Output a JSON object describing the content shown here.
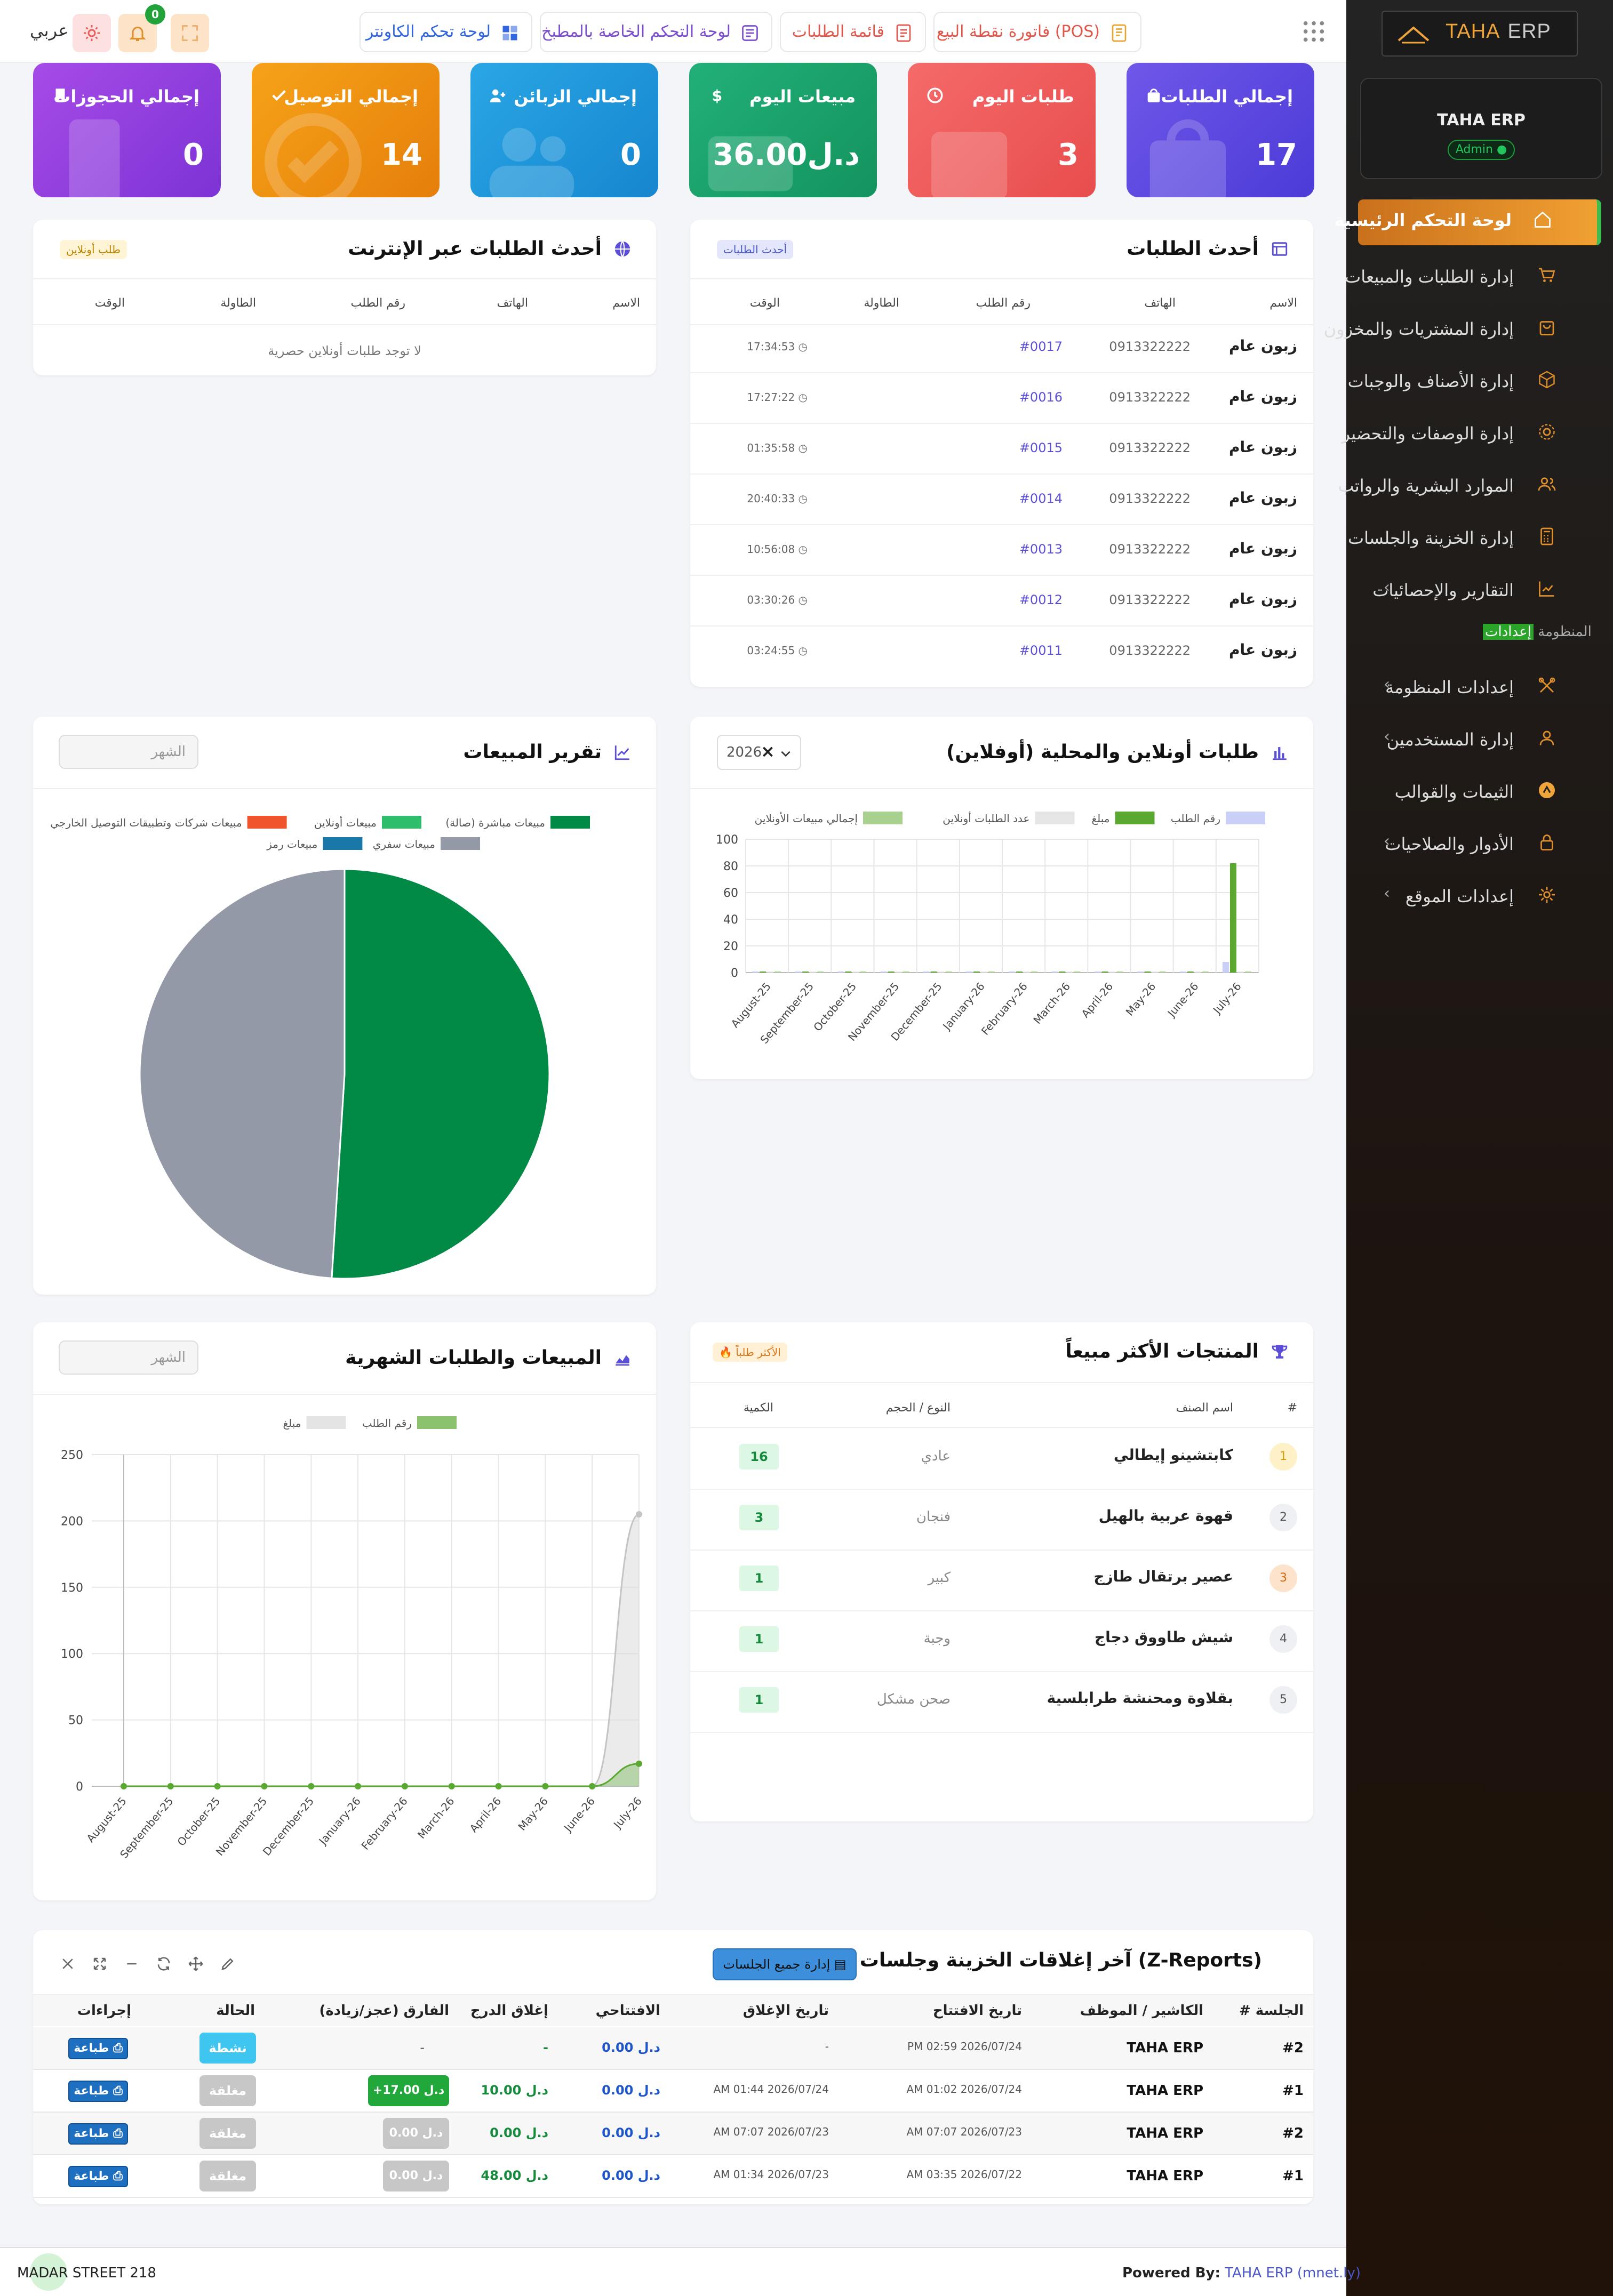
{
  "sidebar": {
    "logo_main": "TAHA",
    "logo_suffix": "ERP",
    "user_name": "TAHA ERP",
    "user_role": "Admin",
    "items": [
      {
        "label": "لوحة التحكم الرئيسية",
        "icon": "home-icon",
        "active": true
      },
      {
        "label": "إدارة الطلبات والمبيعات",
        "icon": "cart-icon"
      },
      {
        "label": "إدارة المشتريات والمخزون",
        "icon": "bag-icon"
      },
      {
        "label": "إدارة الأصناف والوجبات",
        "icon": "box-icon"
      },
      {
        "label": "إدارة الوصفات والتحضير",
        "icon": "gear-icon"
      },
      {
        "label": "الموارد البشرية والرواتب",
        "icon": "people-icon"
      },
      {
        "label": "إدارة الخزينة والجلسات",
        "icon": "calculator-icon"
      },
      {
        "label": "التقارير والإحصائيات",
        "icon": "chart-icon"
      }
    ],
    "section_highlight": "إعدادات",
    "section_rest": "المنظومة",
    "settings_items": [
      {
        "label": "إعدادات المنظومة",
        "icon": "tools-icon"
      },
      {
        "label": "إدارة المستخدمين",
        "icon": "user-icon"
      },
      {
        "label": "الثيمات والقوالب",
        "icon": "palette-icon"
      },
      {
        "label": "الأدوار والصلاحيات",
        "icon": "lock-icon"
      },
      {
        "label": "إعدادات الموقع",
        "icon": "settings-icon"
      }
    ]
  },
  "topbar": {
    "pos": "فاتورة نقطة البيع (POS)",
    "orders": "قائمة الطلبات",
    "kitchen": "لوحة التحكم الخاصة بالمطبخ",
    "counter": "لوحة تحكم الكاونتر",
    "notifications_count": "0",
    "language": "عربي"
  },
  "stats": [
    {
      "title": "إجمالي الطلبات",
      "value": "17",
      "color": "#5a48e0"
    },
    {
      "title": "طلبات اليوم",
      "value": "3",
      "color": "#ef5b5b"
    },
    {
      "title": "مبيعات اليوم",
      "value": "36.00د.ل",
      "color": "#1aa36b"
    },
    {
      "title": "إجمالي الزبائن",
      "value": "0",
      "color": "#1f97da"
    },
    {
      "title": "إجمالي التوصيل",
      "value": "14",
      "color": "#f09315"
    },
    {
      "title": "إجمالي الحجوزات",
      "value": "0",
      "color": "#9140de"
    }
  ],
  "recent_orders": {
    "title": "أحدث الطلبات",
    "chip": "أحدث الطلبات",
    "columns": [
      "الاسم",
      "الهاتف",
      "رقم الطلب",
      "الطاولة",
      "الوقت"
    ],
    "rows": [
      {
        "name": "زبون عام",
        "phone": "0913322222",
        "order": "#0017",
        "table": "",
        "time": "17:34:53"
      },
      {
        "name": "زبون عام",
        "phone": "0913322222",
        "order": "#0016",
        "table": "",
        "time": "17:27:22"
      },
      {
        "name": "زبون عام",
        "phone": "0913322222",
        "order": "#0015",
        "table": "",
        "time": "01:35:58"
      },
      {
        "name": "زبون عام",
        "phone": "0913322222",
        "order": "#0014",
        "table": "",
        "time": "20:40:33"
      },
      {
        "name": "زبون عام",
        "phone": "0913322222",
        "order": "#0013",
        "table": "",
        "time": "10:56:08"
      },
      {
        "name": "زبون عام",
        "phone": "0913322222",
        "order": "#0012",
        "table": "",
        "time": "03:30:26"
      },
      {
        "name": "زبون عام",
        "phone": "0913322222",
        "order": "#0011",
        "table": "",
        "time": "03:24:55"
      }
    ]
  },
  "online_orders": {
    "title": "أحدث الطلبات عبر الإنترنت",
    "chip": "طلب أونلاين",
    "columns": [
      "الاسم",
      "الهاتف",
      "رقم الطلب",
      "الطاولة",
      "الوقت"
    ],
    "empty": "لا توجد طلبات أونلاين حصرية"
  },
  "orders_chart": {
    "title": "طلبات أونلاين والمحلية (أوفلاين)",
    "year": "2026"
  },
  "sales_report": {
    "title": "تقرير المبيعات",
    "month_placeholder": "الشهر"
  },
  "top_products": {
    "title": "المنتجات الأكثر مبيعاً",
    "chip": "الأكثر طلباً",
    "columns": [
      "#",
      "اسم الصنف",
      "النوع / الحجم",
      "الكمية"
    ],
    "rows": [
      {
        "rank": "1",
        "name": "كابتشينو إيطالي",
        "type": "عادي",
        "qty": "16"
      },
      {
        "rank": "2",
        "name": "قهوة عربية بالهيل",
        "type": "فنجان",
        "qty": "3"
      },
      {
        "rank": "3",
        "name": "عصير برتقال طازج",
        "type": "كبير",
        "qty": "1"
      },
      {
        "rank": "4",
        "name": "شيش طاووق دجاج",
        "type": "وجبة",
        "qty": "1"
      },
      {
        "rank": "5",
        "name": "بقلاوة ومحنشة طرابلسية",
        "type": "صحن مشكل",
        "qty": "1"
      }
    ]
  },
  "monthly": {
    "title": "المبيعات والطلبات الشهرية",
    "month_placeholder": "الشهر"
  },
  "zreports": {
    "title": "آخر إغلاقات الخزينة وجلسات العمل (Z-Reports)",
    "manage_button": "إدارة جميع الجلسات",
    "columns": [
      "# الجلسة",
      "الكاشير / الموظف",
      "تاريخ الافتتاح",
      "تاريخ الإغلاق",
      "الافتتاحي",
      "إغلاق الدرج",
      "الفارق (عجز/زيادة)",
      "الحالة",
      "إجراءات"
    ],
    "rows": [
      {
        "session": "#2",
        "cashier": "TAHA ERP",
        "opened": "PM 02:59 2026/07/24",
        "closed": "-",
        "opening": "0.00 د.ل",
        "closing": "-",
        "diff": "-",
        "status": "نشطة",
        "action": "طباعة"
      },
      {
        "session": "#1",
        "cashier": "TAHA ERP",
        "opened": "AM 01:02 2026/07/24",
        "closed": "AM 01:44 2026/07/24",
        "opening": "0.00 د.ل",
        "closing": "10.00 د.ل",
        "diff": "+17.00 د.ل",
        "status": "مغلقة",
        "action": "طباعة"
      },
      {
        "session": "#2",
        "cashier": "TAHA ERP",
        "opened": "AM 07:07 2026/07/23",
        "closed": "AM 07:07 2026/07/23",
        "opening": "0.00 د.ل",
        "closing": "0.00 د.ل",
        "diff": "0.00 د.ل",
        "status": "مغلقة",
        "action": "طباعة"
      },
      {
        "session": "#1",
        "cashier": "TAHA ERP",
        "opened": "AM 03:35 2026/07/22",
        "closed": "AM 01:34 2026/07/23",
        "opening": "0.00 د.ل",
        "closing": "48.00 د.ل",
        "diff": "0.00 د.ل",
        "status": "مغلقة",
        "action": "طباعة"
      }
    ]
  },
  "footer": {
    "powered_label": "Powered By:",
    "powered_link": "TAHA ERP (mnet.ly)",
    "address": "MADAR STREET 218"
  },
  "chart_data": [
    {
      "type": "bar",
      "title": "طلبات أونلاين والمحلية (أوفلاين)",
      "categories": [
        "August-25",
        "September-25",
        "October-25",
        "November-25",
        "December-25",
        "January-26",
        "February-26",
        "March-26",
        "April-26",
        "May-26",
        "June-26",
        "July-26"
      ],
      "ylim": [
        0,
        100
      ],
      "yticks": [
        0,
        20,
        40,
        60,
        80,
        100
      ],
      "legend_position": "top",
      "series": [
        {
          "name": "رقم الطلب",
          "color": "#c9cff7",
          "values": [
            0,
            0,
            0,
            0,
            0,
            0,
            0,
            0,
            0,
            0,
            0,
            8
          ]
        },
        {
          "name": "مبلغ",
          "color": "#5aa830",
          "values": [
            0,
            0,
            0,
            0,
            0,
            0,
            0,
            0,
            0,
            0,
            0,
            82
          ]
        },
        {
          "name": "عدد الطلبات أونلاين",
          "color": "#e6e6e6",
          "values": [
            0,
            0,
            0,
            0,
            0,
            0,
            0,
            0,
            0,
            0,
            0,
            0
          ]
        },
        {
          "name": "إجمالي مبيعات الأونلاين",
          "color": "#a8d08f",
          "values": [
            0,
            0,
            0,
            0,
            0,
            0,
            0,
            0,
            0,
            0,
            0,
            0
          ]
        }
      ]
    },
    {
      "type": "pie",
      "title": "تقرير المبيعات",
      "legend_position": "top",
      "series": [
        {
          "name": "مبيعات مباشرة (صالة)",
          "color": "#008a45",
          "value": 51
        },
        {
          "name": "مبيعات أونلاين",
          "color": "#2ebd6b",
          "value": 0
        },
        {
          "name": "مبيعات شركات وتطبيقات التوصيل الخارجي",
          "color": "#f0542d",
          "value": 0
        },
        {
          "name": "مبيعات سفري",
          "color": "#9499a8",
          "value": 49
        },
        {
          "name": "مبيعات رمز",
          "color": "#1a78a8",
          "value": 0
        }
      ]
    },
    {
      "type": "line",
      "title": "المبيعات والطلبات الشهرية",
      "categories": [
        "August-25",
        "September-25",
        "October-25",
        "November-25",
        "December-25",
        "January-26",
        "February-26",
        "March-26",
        "April-26",
        "May-26",
        "June-26",
        "July-26"
      ],
      "ylim": [
        0,
        250
      ],
      "yticks": [
        0,
        50,
        100,
        150,
        200,
        250
      ],
      "legend_position": "top",
      "series": [
        {
          "name": "رقم الطلب",
          "color": "#5aa830",
          "values": [
            0,
            0,
            0,
            0,
            0,
            0,
            0,
            0,
            0,
            0,
            0,
            17
          ]
        },
        {
          "name": "مبلغ",
          "color": "#d8d8d8",
          "values": [
            0,
            0,
            0,
            0,
            0,
            0,
            0,
            0,
            0,
            0,
            0,
            205
          ]
        }
      ]
    }
  ]
}
